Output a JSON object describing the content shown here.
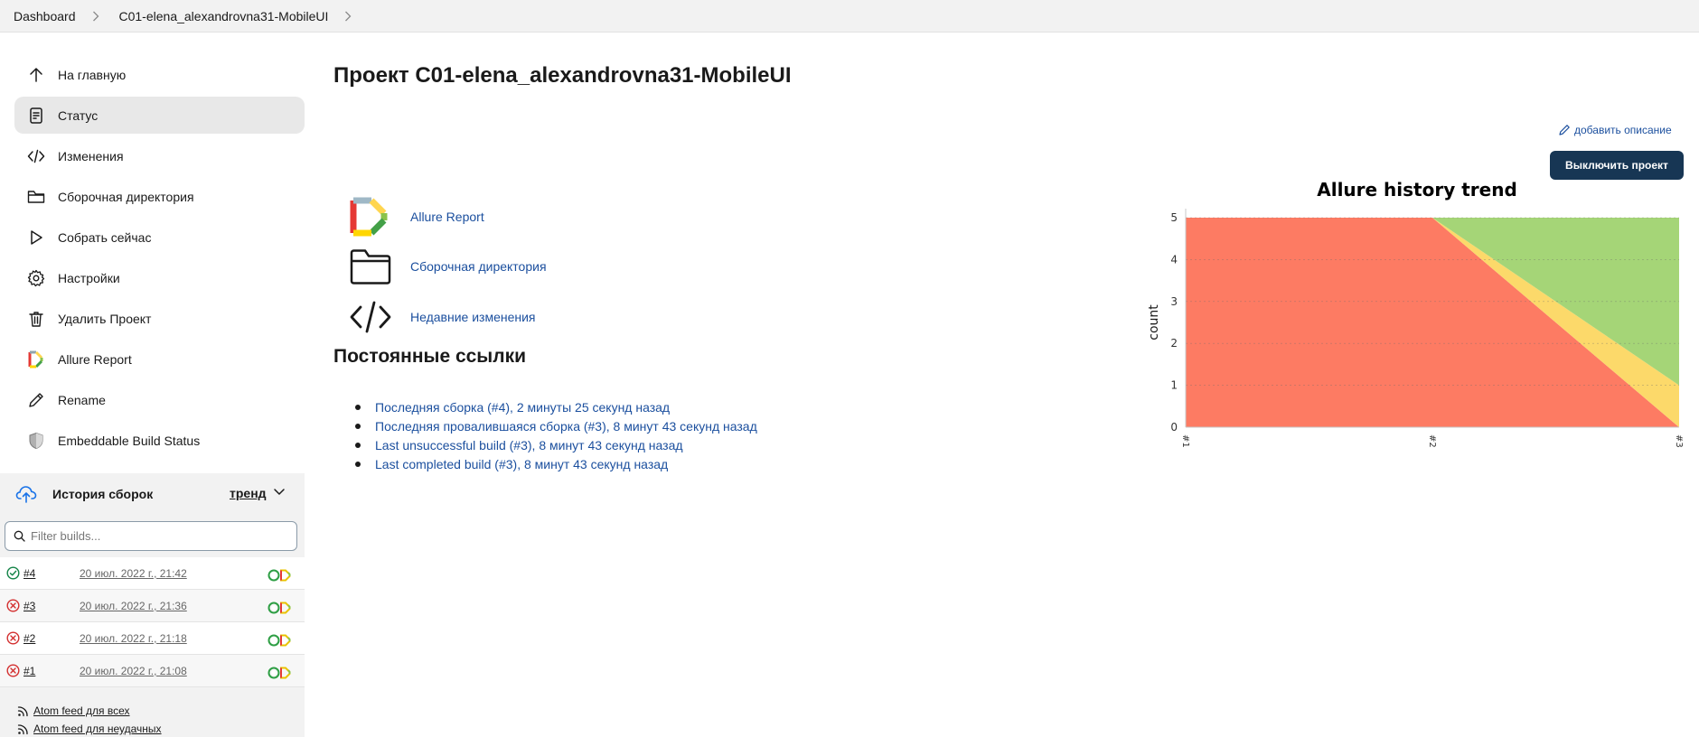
{
  "breadcrumb": {
    "items": [
      "Dashboard",
      "C01-elena_alexandrovna31-MobileUI"
    ]
  },
  "sidebar": {
    "items": [
      {
        "label": "На главную",
        "icon": "arrow-up-icon"
      },
      {
        "label": "Статус",
        "icon": "document-icon"
      },
      {
        "label": "Изменения",
        "icon": "code-icon"
      },
      {
        "label": "Сборочная директория",
        "icon": "folder-icon"
      },
      {
        "label": "Собрать сейчас",
        "icon": "play-icon"
      },
      {
        "label": "Настройки",
        "icon": "gear-icon"
      },
      {
        "label": "Удалить Проект",
        "icon": "trash-icon"
      },
      {
        "label": "Allure Report",
        "icon": "allure-icon"
      },
      {
        "label": "Rename",
        "icon": "pencil-icon"
      },
      {
        "label": "Embeddable Build Status",
        "icon": "shield-icon"
      }
    ]
  },
  "build_history": {
    "title": "История сборок",
    "trend_label": "тренд",
    "filter_placeholder": "Filter builds...",
    "builds": [
      {
        "number": "#4",
        "date": "20 июл. 2022 г., 21:42",
        "status": "success"
      },
      {
        "number": "#3",
        "date": "20 июл. 2022 г., 21:36",
        "status": "failed"
      },
      {
        "number": "#2",
        "date": "20 июл. 2022 г., 21:18",
        "status": "failed"
      },
      {
        "number": "#1",
        "date": "20 июл. 2022 г., 21:08",
        "status": "failed"
      }
    ],
    "feeds": [
      "Atom feed для всех",
      "Atom feed для неудачных"
    ]
  },
  "main": {
    "title": "Проект C01-elena_alexandrovna31-MobileUI",
    "add_description": "добавить описание",
    "disable_button": "Выключить проект",
    "links": [
      {
        "label": "Allure Report",
        "icon": "allure-icon"
      },
      {
        "label": "Сборочная директория",
        "icon": "folder-icon"
      },
      {
        "label": "Недавние изменения",
        "icon": "code-icon"
      }
    ],
    "permalinks_title": "Постоянные ссылки",
    "permalinks": [
      "Последняя сборка (#4), 2 минуты 25 секунд назад",
      "Последняя провалившаяся сборка (#3), 8 минут 43 секунд назад",
      "Last unsuccessful build (#3), 8 минут 43 секунд назад",
      "Last completed build (#3), 8 минут 43 секунд назад"
    ]
  },
  "colors": {
    "failed": "#fd7b63",
    "broken": "#fcd96a",
    "passed": "#a5d577",
    "link": "#1b4f9e",
    "button": "#173654"
  },
  "chart_data": {
    "type": "area",
    "title": "Allure history trend",
    "xlabel": "",
    "ylabel": "count",
    "categories": [
      "#1",
      "#2",
      "#3"
    ],
    "ylim": [
      0,
      5
    ],
    "yticks": [
      0,
      1,
      2,
      3,
      4,
      5
    ],
    "stacked": true,
    "series": [
      {
        "key": "failed",
        "values": [
          5,
          5,
          0
        ],
        "color": "#fd7b63"
      },
      {
        "key": "broken",
        "values": [
          0,
          0,
          1
        ],
        "color": "#fcd96a"
      },
      {
        "key": "passed",
        "values": [
          0,
          0,
          4
        ],
        "color": "#a5d577"
      }
    ],
    "grid": true
  }
}
